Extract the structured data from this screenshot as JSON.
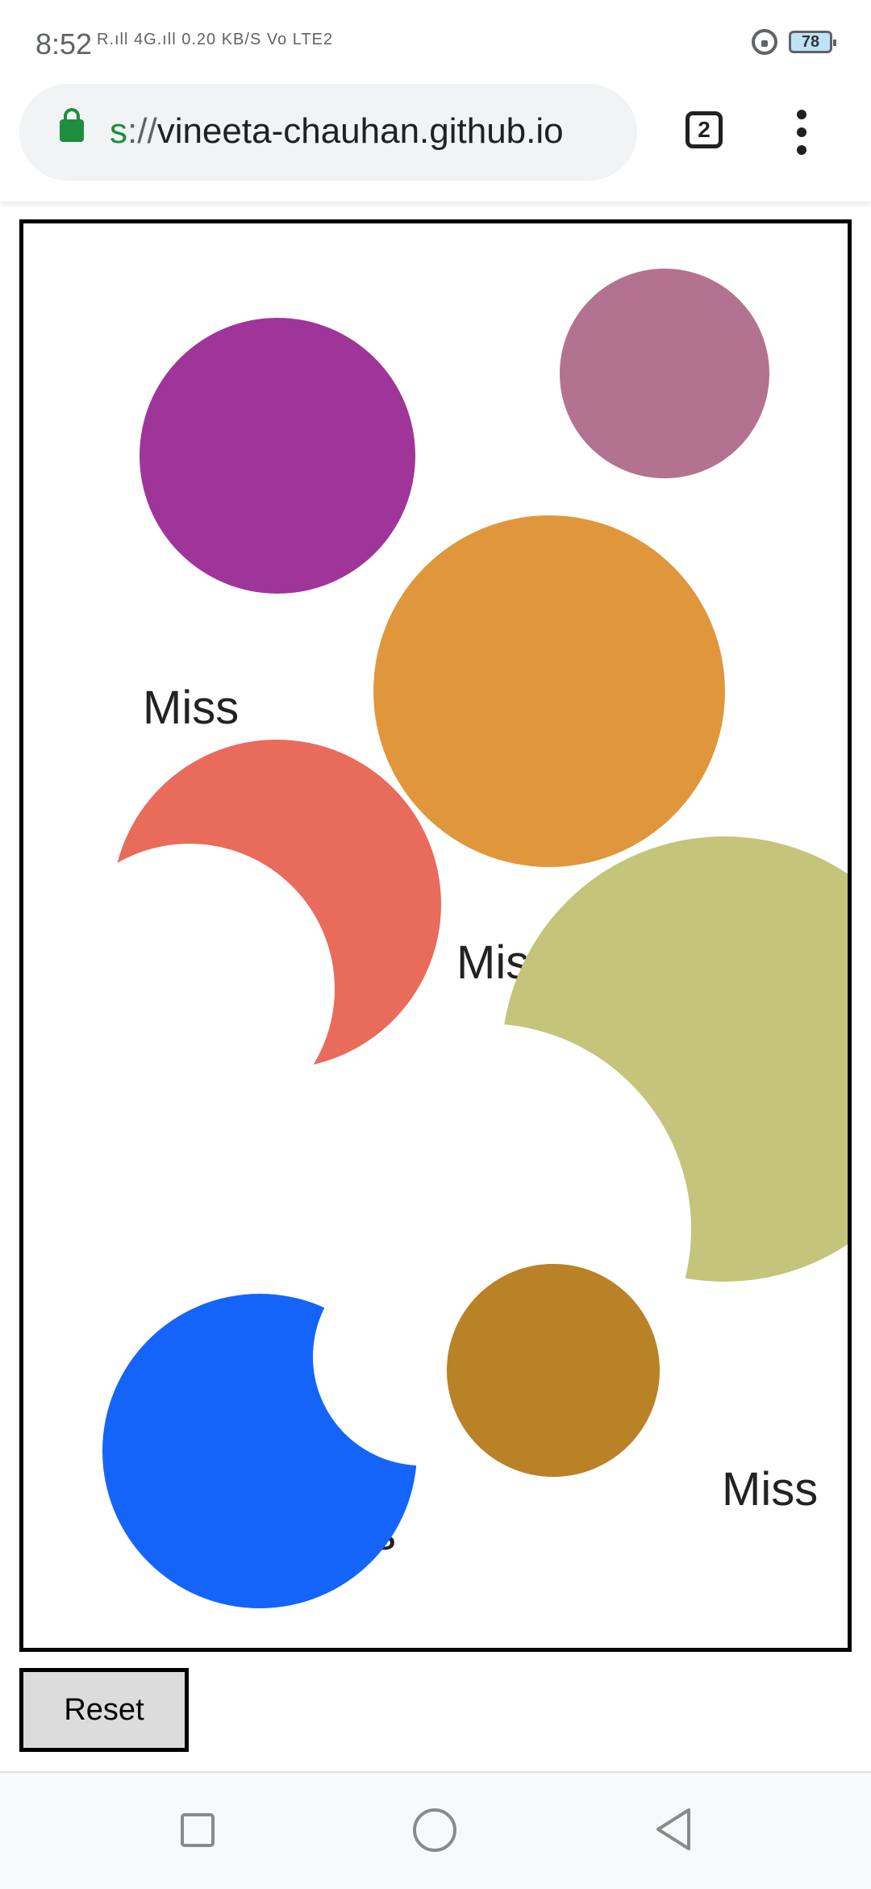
{
  "status_bar": {
    "time": "8:52",
    "network": "R.ıll  4G.ıll  0.20 KB/S  Vo LTE2",
    "battery": "78"
  },
  "browser": {
    "url_scheme": "s",
    "url_separator": "://",
    "url_host": "vineeta-chauhan.github.io",
    "tab_count": "2"
  },
  "game": {
    "miss_labels": [
      "Miss",
      "Mis",
      "ss",
      "Miss"
    ],
    "circle_colors": [
      "#a03599",
      "#b37290",
      "#e0973c",
      "#e86b5c",
      "#c4c47b",
      "#1464fa",
      "#b98226"
    ]
  },
  "controls": {
    "reset_label": "Reset"
  },
  "icons": {
    "padlock": "padlock-icon",
    "tab_switcher": "tab-switcher-icon",
    "menu": "more-vert-icon",
    "nav_recent": "recent-apps-icon",
    "nav_home": "home-icon",
    "nav_back": "back-icon"
  }
}
